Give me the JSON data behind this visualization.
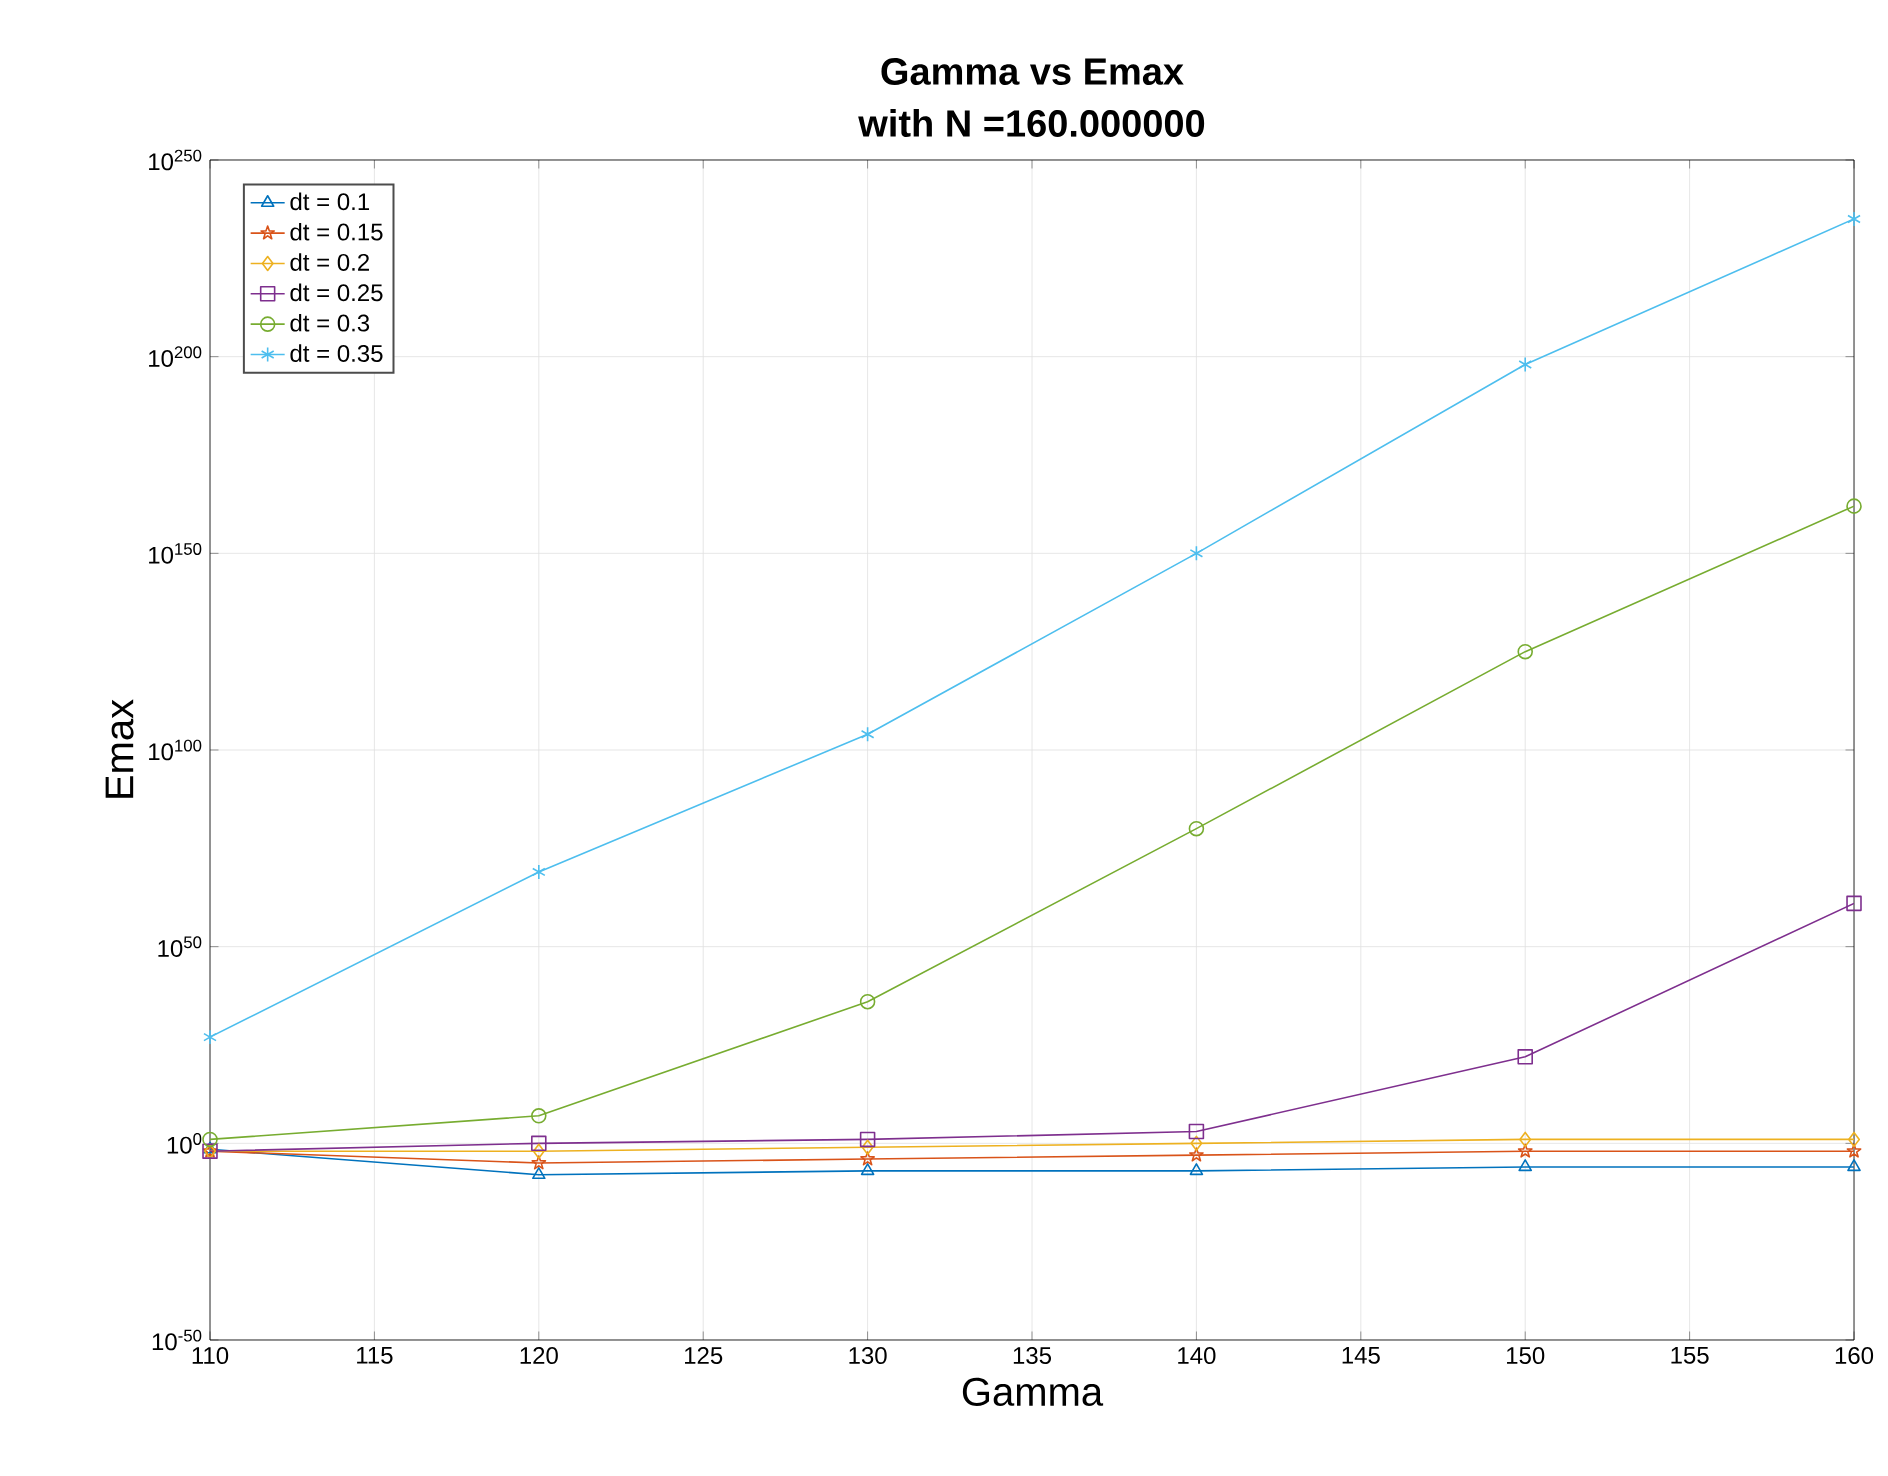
{
  "chart_data": {
    "type": "line",
    "title": "Gamma vs Emax",
    "subtitle": "with N =160.000000",
    "xlabel": "Gamma",
    "ylabel": "Emax",
    "x": [
      110,
      120,
      130,
      140,
      150,
      160
    ],
    "series": [
      {
        "name": "dt = 0.1",
        "color": "#0072bd",
        "marker": "triangle",
        "values": [
          0.03,
          1e-08,
          1e-07,
          1e-07,
          1e-06,
          1e-06
        ]
      },
      {
        "name": "dt = 0.15",
        "color": "#d95319",
        "marker": "star",
        "values": [
          0.01,
          1e-05,
          0.0001,
          0.001,
          0.01,
          0.01
        ]
      },
      {
        "name": "dt = 0.2",
        "color": "#edb120",
        "marker": "diamond",
        "values": [
          0.01,
          0.01,
          0.1,
          1.0,
          10.0,
          10.0
        ]
      },
      {
        "name": "dt = 0.25",
        "color": "#7e2f8e",
        "marker": "square",
        "values": [
          0.01,
          1.0,
          10.0,
          1000.0,
          1e+22,
          1e+61
        ]
      },
      {
        "name": "dt = 0.3",
        "color": "#77ac30",
        "marker": "circle",
        "values": [
          10.0,
          10000000.0,
          1e+36,
          1e+80,
          1e+125,
          1e+162
        ]
      },
      {
        "name": "dt = 0.35",
        "color": "#4dbeee",
        "marker": "cross",
        "values": [
          1e+27,
          1e+69,
          1e+104,
          1e+150,
          1e+198,
          1e+235
        ]
      }
    ],
    "xlim": [
      110,
      160
    ],
    "xticks": [
      110,
      115,
      120,
      125,
      130,
      135,
      140,
      145,
      150,
      155,
      160
    ],
    "ylim": [
      1e-50,
      1e+250
    ],
    "yticks": [
      {
        "value": 1e-50,
        "label": "10$^{-50}$"
      },
      {
        "value": 1.0,
        "label": "10$^{0}$"
      },
      {
        "value": 1e+50,
        "label": "10$^{50}$"
      },
      {
        "value": 1e+100,
        "label": "10$^{100}$"
      },
      {
        "value": 1e+150,
        "label": "10$^{150}$"
      },
      {
        "value": 1e+200,
        "label": "10$^{200}$"
      },
      {
        "value": 1e+250,
        "label": "10$^{250}$"
      }
    ],
    "log": "y",
    "grid": true,
    "legend": "top left",
    "line_style": "solid"
  }
}
